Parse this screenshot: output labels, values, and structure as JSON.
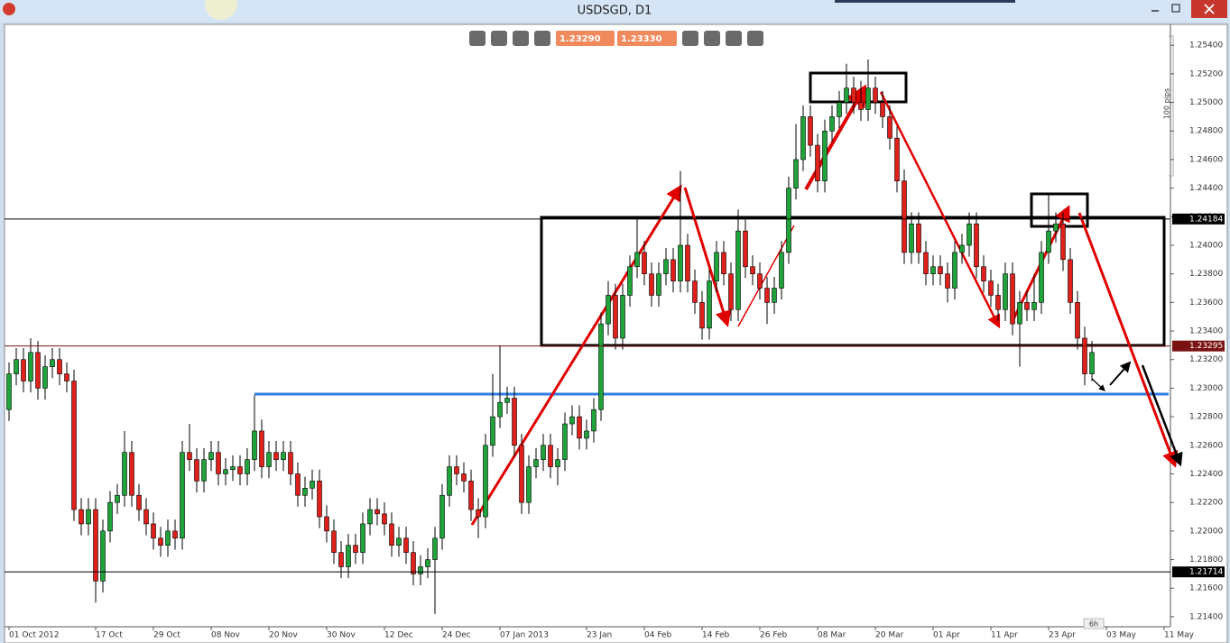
{
  "window": {
    "title": "USDSGD, D1"
  },
  "toolbar": {
    "bid": "1.23290",
    "ask": "1.23330"
  },
  "chart_data": {
    "type": "candlestick",
    "categories": [
      "01 Oct 2012",
      null,
      null,
      null,
      null,
      null,
      null,
      null,
      null,
      null,
      null,
      null,
      "17 Oct",
      null,
      null,
      null,
      null,
      null,
      null,
      null,
      "29 Oct",
      null,
      null,
      null,
      null,
      null,
      null,
      null,
      "08 Nov",
      null,
      null,
      null,
      null,
      null,
      null,
      null,
      "20 Nov",
      null,
      null,
      null,
      null,
      null,
      null,
      null,
      "30 Nov",
      null,
      null,
      null,
      null,
      null,
      null,
      null,
      "12 Dec",
      null,
      null,
      null,
      null,
      null,
      null,
      null,
      "24 Dec",
      null,
      null,
      null,
      null,
      null,
      null,
      null,
      "07 Jan 2013",
      null,
      null,
      null,
      null,
      null,
      null,
      null,
      null,
      null,
      null,
      null,
      "23 Jan",
      null,
      null,
      null,
      null,
      null,
      null,
      null,
      "04 Feb",
      null,
      null,
      null,
      null,
      null,
      null,
      null,
      "14 Feb",
      null,
      null,
      null,
      null,
      null,
      null,
      null,
      "26 Feb",
      null,
      null,
      null,
      null,
      null,
      null,
      null,
      "08 Mar",
      null,
      null,
      null,
      null,
      null,
      null,
      null,
      "20 Mar",
      null,
      null,
      null,
      null,
      null,
      null,
      null,
      "01 Apr",
      null,
      null,
      null,
      null,
      null,
      null,
      null,
      "11 Apr",
      null,
      null,
      null,
      null,
      null,
      null,
      null,
      "23 Apr",
      null,
      null,
      null,
      null,
      null,
      null,
      null,
      "03 May",
      null,
      null,
      null,
      null,
      null,
      null,
      null,
      "11 May"
    ],
    "open": [
      1.2285,
      1.231,
      1.232,
      1.2305,
      1.2325,
      1.23,
      1.2315,
      1.232,
      1.231,
      1.2305,
      1.2215,
      1.2205,
      1.2215,
      1.2165,
      1.22,
      1.222,
      1.2225,
      1.2255,
      1.2225,
      1.2215,
      1.2205,
      1.2195,
      1.219,
      1.22,
      1.2195,
      1.2255,
      1.225,
      1.2235,
      1.225,
      1.2255,
      1.224,
      1.2243,
      1.2245,
      1.224,
      1.225,
      1.227,
      1.2245,
      1.2255,
      1.225,
      1.2255,
      1.224,
      1.2225,
      1.223,
      1.2235,
      1.221,
      1.22,
      1.2185,
      1.2175,
      1.219,
      1.2185,
      1.2205,
      1.2215,
      1.2212,
      1.2205,
      1.219,
      1.2195,
      1.2185,
      1.217,
      1.2175,
      1.218,
      1.2195,
      1.2225,
      1.2245,
      1.224,
      1.2235,
      1.2215,
      1.221,
      1.226,
      1.228,
      1.229,
      1.2293,
      1.226,
      1.222,
      1.2245,
      1.225,
      1.226,
      1.2245,
      1.225,
      1.2275,
      1.228,
      1.2265,
      1.227,
      1.2285,
      1.2345,
      1.2365,
      1.2335,
      1.2365,
      1.2385,
      1.2395,
      1.238,
      1.2365,
      1.238,
      1.239,
      1.2375,
      1.24,
      1.2375,
      1.236,
      1.2342,
      1.2375,
      1.2395,
      1.238,
      1.2355,
      1.241,
      1.2385,
      1.238,
      1.237,
      1.236,
      1.237,
      1.2395,
      1.244,
      1.246,
      1.249,
      1.247,
      1.2445,
      1.248,
      1.249,
      1.25,
      1.251,
      1.25,
      1.2495,
      1.251,
      1.25,
      1.249,
      1.2475,
      1.2445,
      1.2395,
      1.2415,
      1.2395,
      1.238,
      1.2385,
      1.238,
      1.237,
      1.2395,
      1.24,
      1.2415,
      1.2385,
      1.2375,
      1.2365,
      1.2355,
      1.238,
      1.2345,
      1.236,
      1.2355,
      1.236,
      1.2395,
      1.241,
      1.2415,
      1.239,
      1.236,
      1.2335,
      1.231,
      null,
      null,
      null,
      null,
      null,
      null,
      null,
      null,
      null,
      null
    ],
    "high": [
      1.2318,
      1.2328,
      1.2328,
      1.2335,
      1.2333,
      1.2323,
      1.2328,
      1.2328,
      1.2318,
      1.2313,
      1.2223,
      1.2223,
      1.2223,
      1.2208,
      1.2228,
      1.2233,
      1.227,
      1.2263,
      1.2233,
      1.2223,
      1.2213,
      1.2203,
      1.2208,
      1.2208,
      1.2263,
      1.2275,
      1.2258,
      1.2258,
      1.2263,
      1.2263,
      1.2251,
      1.2253,
      1.2253,
      1.2258,
      1.2295,
      1.2278,
      1.2263,
      1.2263,
      1.2263,
      1.2263,
      1.2248,
      1.2238,
      1.2243,
      1.2243,
      1.2218,
      1.2208,
      1.2193,
      1.2198,
      1.2198,
      1.2213,
      1.2223,
      1.2223,
      1.222,
      1.2213,
      1.2203,
      1.2203,
      1.2193,
      1.2183,
      1.2188,
      1.2203,
      1.2233,
      1.2253,
      1.2253,
      1.2248,
      1.2243,
      1.2223,
      1.2268,
      1.231,
      1.233,
      1.2301,
      1.2301,
      1.2268,
      1.2253,
      1.2258,
      1.2268,
      1.2268,
      1.2258,
      1.2283,
      1.2288,
      1.2288,
      1.2278,
      1.2293,
      1.2353,
      1.2375,
      1.2373,
      1.2373,
      1.2393,
      1.242,
      1.2403,
      1.2388,
      1.2388,
      1.2398,
      1.2398,
      1.2452,
      1.2408,
      1.2383,
      1.2368,
      1.2383,
      1.2403,
      1.2403,
      1.2388,
      1.2425,
      1.2418,
      1.2393,
      1.2388,
      1.2378,
      1.2378,
      1.2403,
      1.2448,
      1.2485,
      1.2498,
      1.2498,
      1.2478,
      1.2488,
      1.2498,
      1.2508,
      1.2527,
      1.2518,
      1.2515,
      1.253,
      1.2518,
      1.2508,
      1.2498,
      1.2483,
      1.2453,
      1.2423,
      1.2423,
      1.2403,
      1.2393,
      1.2393,
      1.2388,
      1.2403,
      1.2408,
      1.2423,
      1.2423,
      1.2393,
      1.2383,
      1.2373,
      1.2388,
      1.2388,
      1.2368,
      1.2368,
      1.238,
      1.2403,
      1.2435,
      1.2423,
      1.2423,
      1.2398,
      1.2368,
      1.2343,
      1.2333,
      null,
      null,
      null,
      null,
      null,
      null,
      null,
      null,
      null,
      null
    ],
    "low": [
      1.2277,
      1.2302,
      1.2297,
      1.2297,
      1.2292,
      1.2292,
      1.2307,
      1.2302,
      1.2297,
      1.2207,
      1.2197,
      1.2197,
      1.215,
      1.2157,
      1.2192,
      1.2212,
      1.2217,
      1.2217,
      1.2207,
      1.2197,
      1.2187,
      1.2182,
      1.2182,
      1.2187,
      1.2187,
      1.2242,
      1.2227,
      1.2227,
      1.2242,
      1.2232,
      1.2232,
      1.2235,
      1.2232,
      1.2232,
      1.2242,
      1.2237,
      1.2237,
      1.2242,
      1.2242,
      1.2232,
      1.2217,
      1.2217,
      1.2222,
      1.2202,
      1.2192,
      1.2177,
      1.2167,
      1.2167,
      1.2177,
      1.2177,
      1.2197,
      1.2204,
      1.2197,
      1.2182,
      1.2182,
      1.2177,
      1.2162,
      1.2162,
      1.2167,
      1.2142,
      1.2187,
      1.2217,
      1.2232,
      1.2227,
      1.2207,
      1.2195,
      1.2202,
      1.2252,
      1.2272,
      1.2282,
      1.2252,
      1.2212,
      1.2212,
      1.2237,
      1.2242,
      1.2237,
      1.2232,
      1.2242,
      1.2267,
      1.2257,
      1.2257,
      1.2262,
      1.2277,
      1.2337,
      1.2327,
      1.2327,
      1.2357,
      1.2377,
      1.2372,
      1.2357,
      1.2357,
      1.2372,
      1.2367,
      1.2367,
      1.2367,
      1.2352,
      1.2334,
      1.2334,
      1.2367,
      1.2372,
      1.2347,
      1.2347,
      1.2377,
      1.2372,
      1.2362,
      1.2345,
      1.2352,
      1.2362,
      1.2387,
      1.2432,
      1.2452,
      1.2462,
      1.2437,
      1.2437,
      1.2472,
      1.2482,
      1.2492,
      1.2492,
      1.2487,
      1.2487,
      1.2492,
      1.2482,
      1.2467,
      1.2437,
      1.2387,
      1.2387,
      1.2387,
      1.2372,
      1.2372,
      1.2372,
      1.236,
      1.2362,
      1.2387,
      1.2392,
      1.2377,
      1.2367,
      1.2357,
      1.2347,
      1.2347,
      1.2337,
      1.2315,
      1.2347,
      1.2347,
      1.2352,
      1.2387,
      1.2402,
      1.2382,
      1.2352,
      1.2327,
      1.2302,
      1.2305,
      null,
      null,
      null,
      null,
      null,
      null,
      null,
      null,
      null,
      null
    ],
    "close": [
      1.231,
      1.232,
      1.2305,
      1.2325,
      1.23,
      1.2315,
      1.232,
      1.231,
      1.2305,
      1.2215,
      1.2205,
      1.2215,
      1.2165,
      1.22,
      1.222,
      1.2225,
      1.2255,
      1.2225,
      1.2215,
      1.2205,
      1.2195,
      1.219,
      1.22,
      1.2195,
      1.2255,
      1.225,
      1.2235,
      1.225,
      1.2255,
      1.224,
      1.2243,
      1.2245,
      1.224,
      1.225,
      1.227,
      1.2245,
      1.2255,
      1.225,
      1.2255,
      1.224,
      1.2225,
      1.223,
      1.2235,
      1.221,
      1.22,
      1.2185,
      1.2175,
      1.219,
      1.2185,
      1.2205,
      1.2215,
      1.2212,
      1.2205,
      1.219,
      1.2195,
      1.2185,
      1.217,
      1.2175,
      1.218,
      1.2195,
      1.2225,
      1.2245,
      1.224,
      1.2235,
      1.2215,
      1.221,
      1.226,
      1.228,
      1.229,
      1.2293,
      1.226,
      1.222,
      1.2245,
      1.225,
      1.226,
      1.2245,
      1.225,
      1.2275,
      1.228,
      1.2265,
      1.227,
      1.2285,
      1.2345,
      1.2365,
      1.2335,
      1.2365,
      1.2385,
      1.2395,
      1.238,
      1.2365,
      1.238,
      1.239,
      1.2375,
      1.24,
      1.2375,
      1.236,
      1.2342,
      1.2375,
      1.2395,
      1.238,
      1.2355,
      1.241,
      1.2385,
      1.238,
      1.237,
      1.236,
      1.237,
      1.2395,
      1.244,
      1.246,
      1.249,
      1.247,
      1.2445,
      1.248,
      1.249,
      1.25,
      1.251,
      1.25,
      1.2495,
      1.251,
      1.25,
      1.249,
      1.2475,
      1.2445,
      1.2395,
      1.2415,
      1.2395,
      1.238,
      1.2385,
      1.238,
      1.237,
      1.2395,
      1.24,
      1.2415,
      1.2385,
      1.2375,
      1.2365,
      1.2355,
      1.238,
      1.2345,
      1.236,
      1.2355,
      1.236,
      1.2395,
      1.241,
      1.2415,
      1.239,
      1.236,
      1.2335,
      1.231,
      1.2325,
      null,
      null,
      null,
      null,
      null,
      null,
      null,
      null,
      null,
      null
    ],
    "up_color": "#1fa33a",
    "down_color": "#e0201b",
    "ylim": [
      1.2133,
      1.2554
    ],
    "yticks": [
      {
        "value": 1.254,
        "label": "1.25400"
      },
      {
        "value": 1.252,
        "label": "1.25200"
      },
      {
        "value": 1.25,
        "label": "1.25000"
      },
      {
        "value": 1.248,
        "label": "1.24800"
      },
      {
        "value": 1.246,
        "label": "1.24600"
      },
      {
        "value": 1.244,
        "label": "1.24400"
      },
      {
        "value": 1.242,
        "label": "1.24200"
      },
      {
        "value": 1.24,
        "label": "1.24000"
      },
      {
        "value": 1.238,
        "label": "1.23800"
      },
      {
        "value": 1.236,
        "label": "1.23600"
      },
      {
        "value": 1.234,
        "label": "1.23400"
      },
      {
        "value": 1.232,
        "label": "1.23200"
      },
      {
        "value": 1.23,
        "label": "1.23000"
      },
      {
        "value": 1.228,
        "label": "1.22800"
      },
      {
        "value": 1.226,
        "label": "1.22600"
      },
      {
        "value": 1.224,
        "label": "1.22400"
      },
      {
        "value": 1.222,
        "label": "1.22200"
      },
      {
        "value": 1.22,
        "label": "1.22000"
      },
      {
        "value": 1.218,
        "label": "1.21800"
      },
      {
        "value": 1.216,
        "label": "1.21600"
      },
      {
        "value": 1.214,
        "label": "1.21400"
      }
    ],
    "grid": false,
    "hlines": [
      {
        "value": 1.24184,
        "color": "#000000"
      },
      {
        "value": 1.23295,
        "color": "#7a1212"
      },
      {
        "value": 1.21714,
        "color": "#000000"
      }
    ],
    "scale_label": "100 pips",
    "period_label": "6h"
  }
}
